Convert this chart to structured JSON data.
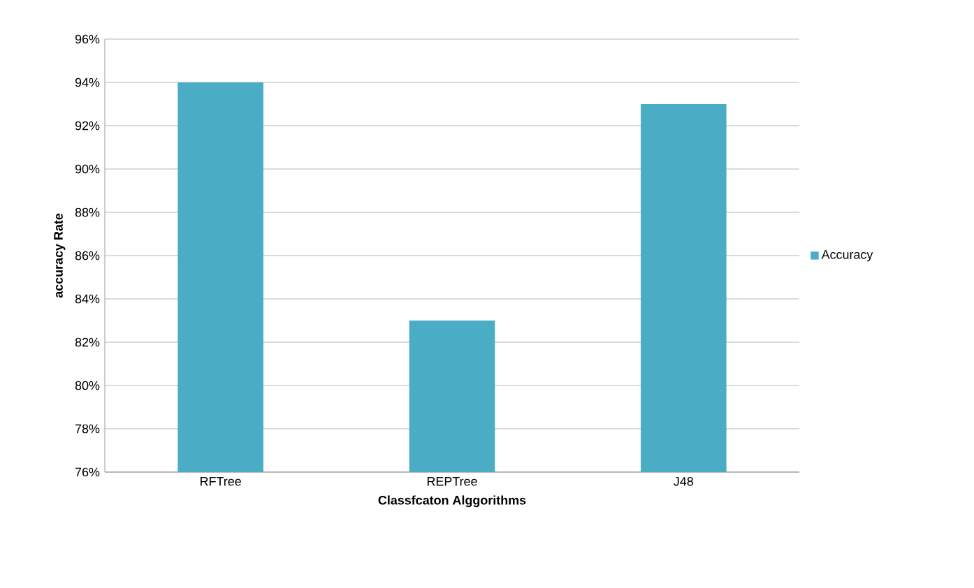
{
  "chart_data": {
    "type": "bar",
    "xlabel": "Classfcaton  Alggorithms",
    "ylabel": "accuracy  Rate",
    "categories": [
      "RFTree",
      "REPTree",
      "J48"
    ],
    "series": [
      {
        "name": "Accuracy",
        "color": "#4bacc6",
        "values": [
          94,
          83,
          93
        ]
      }
    ],
    "ylim": [
      76,
      96
    ],
    "yticks": [
      {
        "value": 76,
        "label": "76%"
      },
      {
        "value": 78,
        "label": "78%"
      },
      {
        "value": 80,
        "label": "80%"
      },
      {
        "value": 82,
        "label": "82%"
      },
      {
        "value": 84,
        "label": "84%"
      },
      {
        "value": 86,
        "label": "86%"
      },
      {
        "value": 88,
        "label": "88%"
      },
      {
        "value": 90,
        "label": "90%"
      },
      {
        "value": 92,
        "label": "92%"
      },
      {
        "value": 94,
        "label": "94%"
      },
      {
        "value": 96,
        "label": "96%"
      }
    ],
    "grid": "y",
    "legend": "right"
  }
}
